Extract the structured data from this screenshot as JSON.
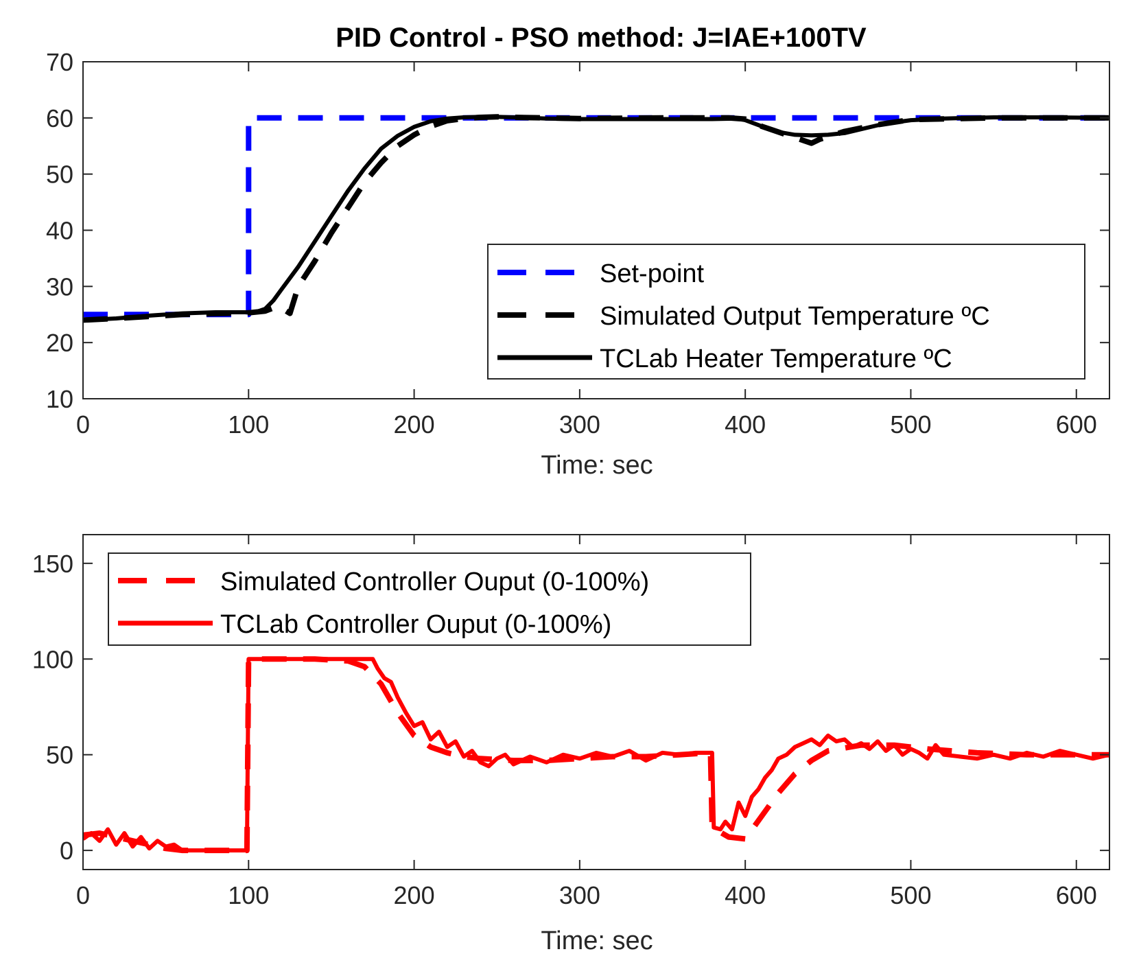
{
  "chart_data": [
    {
      "type": "line",
      "title": "PID Control - PSO method: J=IAE+100TV",
      "xlabel": "Time: sec",
      "ylabel": "",
      "xlim": [
        0,
        620
      ],
      "ylim": [
        10,
        70
      ],
      "xticks": [
        "0",
        "100",
        "200",
        "300",
        "400",
        "500",
        "600"
      ],
      "yticks": [
        "10",
        "20",
        "30",
        "40",
        "50",
        "60",
        "70"
      ],
      "grid": false,
      "legend_position": "bottom-right",
      "series": [
        {
          "name": "Set-point",
          "color": "#0000ff",
          "style": "dashed",
          "x": [
            0,
            100,
            100,
            620
          ],
          "y": [
            25,
            25,
            60,
            60
          ]
        },
        {
          "name": "Simulated Output Temperature ºC",
          "color": "#000000",
          "style": "dashed",
          "x": [
            0,
            20,
            60,
            100,
            110,
            118,
            125,
            130,
            140,
            150,
            160,
            170,
            180,
            190,
            200,
            210,
            220,
            230,
            240,
            250,
            260,
            280,
            300,
            350,
            390,
            400,
            410,
            420,
            430,
            440,
            445,
            460,
            480,
            500,
            550,
            620
          ],
          "y": [
            24,
            24.3,
            25,
            25.3,
            25.6,
            26.5,
            25.2,
            30,
            34.5,
            39.5,
            44,
            48.5,
            52,
            55,
            57,
            58.5,
            59.5,
            59.9,
            60.1,
            60.2,
            60.1,
            60,
            59.9,
            60,
            60,
            59.8,
            58.5,
            57.5,
            56.5,
            55.5,
            56.2,
            57.6,
            58.8,
            59.7,
            60,
            60
          ]
        },
        {
          "name": "TCLab Heater Temperature ºC",
          "color": "#000000",
          "style": "solid",
          "x": [
            0,
            20,
            40,
            60,
            80,
            100,
            105,
            110,
            115,
            120,
            125,
            130,
            140,
            150,
            160,
            170,
            180,
            190,
            200,
            210,
            220,
            230,
            240,
            250,
            260,
            270,
            280,
            300,
            350,
            380,
            395,
            400,
            410,
            420,
            430,
            440,
            450,
            460,
            470,
            480,
            490,
            500,
            520,
            550,
            580,
            620
          ],
          "y": [
            24,
            24.3,
            24.8,
            25.2,
            25.4,
            25.4,
            25.5,
            26,
            27.5,
            29.5,
            31.5,
            33.5,
            38,
            42.5,
            47,
            51,
            54.5,
            56.8,
            58.4,
            59.4,
            59.9,
            60.1,
            60.2,
            60.2,
            60.1,
            60,
            59.9,
            59.8,
            59.8,
            59.8,
            59.9,
            59.6,
            58.5,
            57.5,
            57,
            56.9,
            57,
            57.3,
            58,
            58.7,
            59.2,
            59.6,
            59.9,
            60.1,
            60.1,
            60
          ]
        }
      ]
    },
    {
      "type": "line",
      "title": "",
      "xlabel": "Time: sec",
      "ylabel": "",
      "xlim": [
        0,
        620
      ],
      "ylim": [
        -10,
        165
      ],
      "xticks": [
        "0",
        "100",
        "200",
        "300",
        "400",
        "500",
        "600"
      ],
      "yticks": [
        "0",
        "50",
        "100",
        "150"
      ],
      "grid": false,
      "legend_position": "top-left",
      "series": [
        {
          "name": "Simulated Controller Ouput (0-100%)",
          "color": "#ff0000",
          "style": "dashed",
          "x": [
            0,
            10,
            20,
            30,
            40,
            50,
            60,
            80,
            99,
            100,
            120,
            140,
            160,
            170,
            180,
            190,
            200,
            210,
            220,
            230,
            240,
            260,
            280,
            300,
            320,
            340,
            360,
            379,
            380,
            390,
            400,
            410,
            420,
            430,
            440,
            450,
            470,
            490,
            510,
            540,
            570,
            600,
            620
          ],
          "y": [
            8,
            9,
            7,
            5,
            3,
            1,
            0,
            0,
            0,
            100,
            100,
            100,
            99,
            96,
            87,
            72,
            60,
            54,
            51,
            49,
            48,
            47,
            47,
            48,
            49,
            49,
            50,
            51,
            12,
            7,
            6,
            18,
            30,
            40,
            47,
            52,
            55,
            55,
            53,
            51,
            50,
            50,
            50
          ]
        },
        {
          "name": "TCLab Controller Ouput (0-100%)",
          "color": "#ff0000",
          "style": "solid",
          "x": [
            0,
            5,
            10,
            15,
            20,
            25,
            30,
            35,
            40,
            45,
            50,
            55,
            60,
            80,
            99,
            100,
            120,
            140,
            160,
            175,
            178,
            182,
            186,
            190,
            195,
            200,
            205,
            210,
            215,
            220,
            225,
            230,
            235,
            240,
            245,
            250,
            255,
            260,
            265,
            270,
            280,
            290,
            300,
            310,
            320,
            330,
            340,
            350,
            360,
            370,
            380,
            381,
            385,
            388,
            392,
            396,
            400,
            404,
            408,
            412,
            416,
            420,
            425,
            430,
            435,
            440,
            445,
            450,
            455,
            460,
            465,
            470,
            475,
            480,
            485,
            490,
            495,
            500,
            505,
            510,
            515,
            520,
            530,
            540,
            550,
            560,
            570,
            580,
            590,
            600,
            610,
            620
          ],
          "y": [
            6,
            9,
            5,
            11,
            3,
            9,
            2,
            7,
            1,
            5,
            2,
            3,
            0,
            0,
            0,
            100,
            100,
            100,
            100,
            100,
            95,
            90,
            88,
            80,
            72,
            65,
            67,
            58,
            62,
            54,
            57,
            49,
            52,
            46,
            44,
            48,
            50,
            45,
            47,
            49,
            46,
            50,
            48,
            51,
            49,
            52,
            47,
            51,
            50,
            51,
            51,
            12,
            11,
            15,
            11,
            25,
            18,
            28,
            32,
            38,
            42,
            48,
            50,
            54,
            56,
            58,
            55,
            60,
            57,
            58,
            54,
            56,
            53,
            57,
            52,
            55,
            50,
            53,
            51,
            48,
            55,
            50,
            49,
            48,
            50,
            48,
            51,
            49,
            52,
            50,
            48,
            50
          ]
        }
      ]
    }
  ]
}
